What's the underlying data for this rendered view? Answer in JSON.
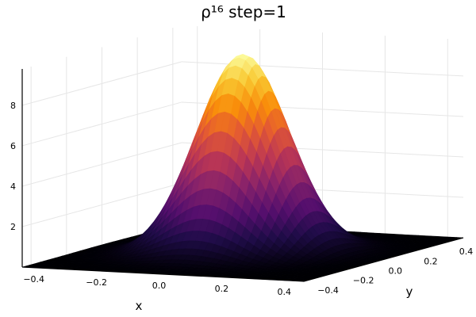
{
  "chart_data": {
    "type": "surface",
    "title": "ρ¹⁶ step=1",
    "xlabel": "x",
    "ylabel": "y",
    "zlabel": "",
    "x_ticks": [
      -0.4,
      -0.2,
      0.0,
      0.2,
      0.4
    ],
    "x_tick_labels": [
      "−0.4",
      "−0.2",
      "0.0",
      "0.2",
      "0.4"
    ],
    "y_ticks": [
      -0.4,
      -0.2,
      0.0,
      0.2,
      0.4
    ],
    "y_tick_labels": [
      "−0.4",
      "−0.2",
      "0.0",
      "0.2",
      "0.4"
    ],
    "z_ticks": [
      2,
      4,
      6,
      8
    ],
    "z_tick_labels": [
      "2",
      "4",
      "6",
      "8"
    ],
    "xlim": [
      -0.45,
      0.45
    ],
    "ylim": [
      -0.45,
      0.45
    ],
    "zlim": [
      0,
      9.8
    ],
    "grid": true,
    "colormap": "inferno",
    "surface": {
      "function": "gaussian",
      "peak": 9.8,
      "center_x": 0.0,
      "center_y": 0.0,
      "sigma": 0.13
    }
  }
}
